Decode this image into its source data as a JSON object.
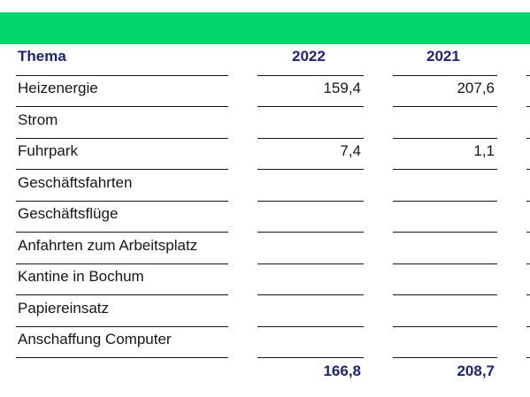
{
  "table": {
    "headers": [
      "Thema",
      "2022",
      "2021"
    ],
    "rows": [
      {
        "label": "Heizenergie",
        "y2022": "159,4",
        "y2021": "207,6"
      },
      {
        "label": "Strom",
        "y2022": "",
        "y2021": ""
      },
      {
        "label": "Fuhrpark",
        "y2022": "7,4",
        "y2021": "1,1"
      },
      {
        "label": "Geschäftsfahrten",
        "y2022": "",
        "y2021": ""
      },
      {
        "label": "Geschäftsflüge",
        "y2022": "",
        "y2021": ""
      },
      {
        "label": "Anfahrten zum Arbeitsplatz",
        "y2022": "",
        "y2021": ""
      },
      {
        "label": "Kantine in Bochum",
        "y2022": "",
        "y2021": ""
      },
      {
        "label": "Papiereinsatz",
        "y2022": "",
        "y2021": ""
      },
      {
        "label": "Anschaffung Computer",
        "y2022": "",
        "y2021": ""
      }
    ],
    "totals": {
      "label": "",
      "y2022": "166,8",
      "y2021": "208,7"
    }
  },
  "colors": {
    "accent_bar": "#00d66b",
    "header_text": "#1e2470",
    "body_text": "#161616"
  }
}
